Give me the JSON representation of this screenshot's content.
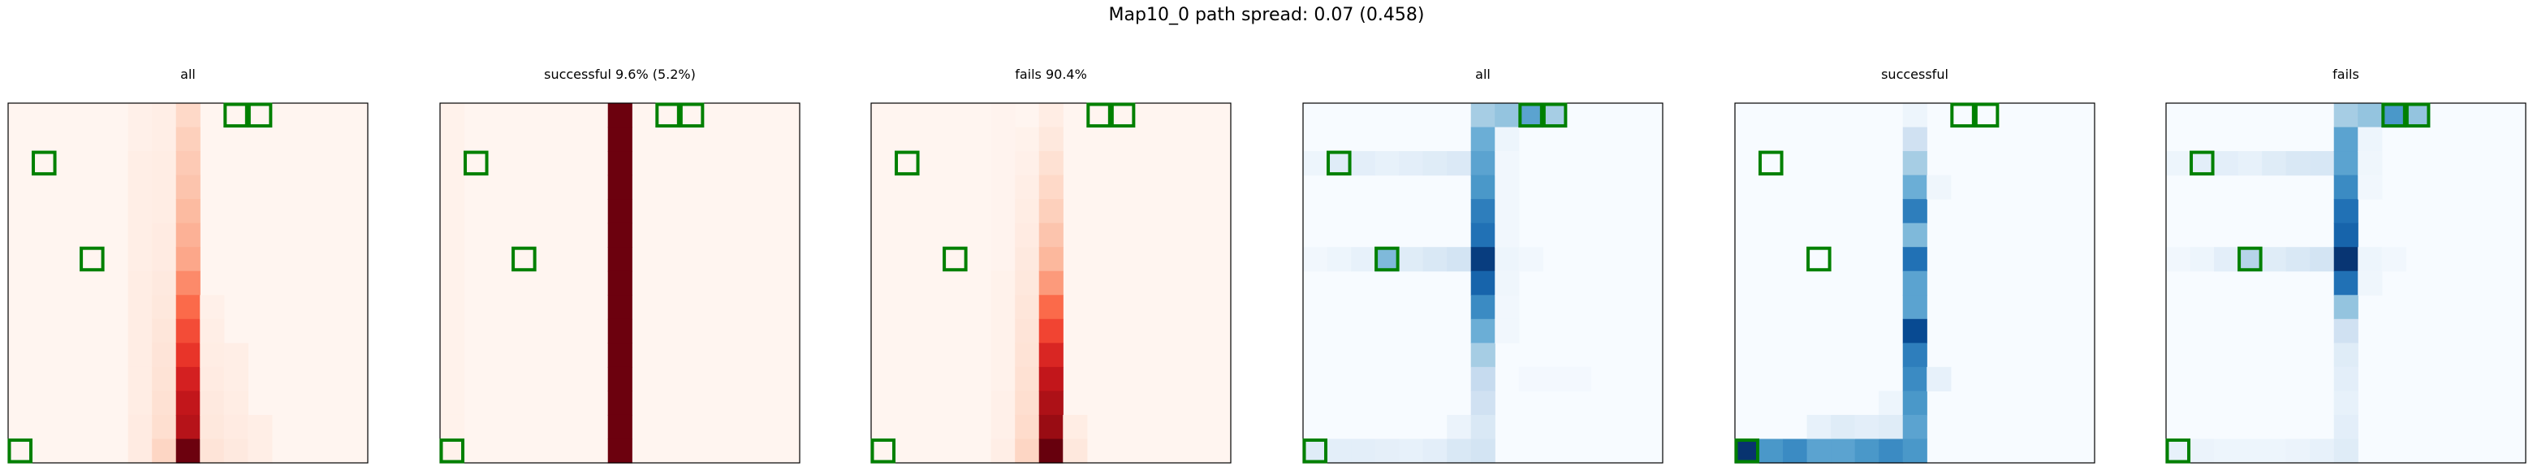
{
  "title": "Map10_0 path spread: 0.07 (0.458)",
  "chart_data": [
    {
      "type": "heatmap",
      "title": "all",
      "colormap": "Reds",
      "grid_size": 15,
      "columns": [
        {
          "col": 5,
          "rows": {
            "0": 0.03,
            "1": 0.03,
            "2": 0.04,
            "3": 0.04,
            "4": 0.04,
            "5": 0.04,
            "6": 0.04,
            "7": 0.05,
            "8": 0.05,
            "9": 0.05,
            "10": 0.05,
            "11": 0.05,
            "12": 0.05,
            "13": 0.06,
            "14": 0.06
          }
        },
        {
          "col": 6,
          "rows": {
            "0": 0.04,
            "1": 0.04,
            "2": 0.05,
            "3": 0.05,
            "4": 0.05,
            "5": 0.06,
            "6": 0.06,
            "7": 0.07,
            "8": 0.08,
            "9": 0.09,
            "10": 0.1,
            "11": 0.11,
            "12": 0.12,
            "13": 0.13,
            "14": 0.16
          }
        },
        {
          "col": 7,
          "rows": {
            "0": 0.15,
            "1": 0.18,
            "2": 0.2,
            "3": 0.22,
            "4": 0.25,
            "5": 0.28,
            "6": 0.31,
            "7": 0.4,
            "8": 0.5,
            "9": 0.58,
            "10": 0.65,
            "11": 0.72,
            "12": 0.78,
            "13": 0.82,
            "14": 0.99
          }
        },
        {
          "col": 8,
          "rows": {
            "8": 0.03,
            "9": 0.04,
            "10": 0.05,
            "11": 0.06,
            "12": 0.07,
            "13": 0.08,
            "14": 0.1
          }
        },
        {
          "col": 9,
          "rows": {
            "10": 0.04,
            "11": 0.04,
            "12": 0.05,
            "13": 0.06,
            "14": 0.07
          }
        },
        {
          "col": 10,
          "rows": {
            "13": 0.04,
            "14": 0.04
          }
        }
      ],
      "markers": [
        [
          9,
          0
        ],
        [
          10,
          0
        ],
        [
          1,
          2
        ],
        [
          3,
          6
        ],
        [
          0,
          14
        ]
      ]
    },
    {
      "type": "heatmap",
      "title": "successful 9.6% (5.2%)",
      "colormap": "Reds",
      "grid_size": 15,
      "columns": [
        {
          "col": 0,
          "rows": {
            "0": 0.02,
            "1": 0.02,
            "2": 0.02,
            "3": 0.02,
            "4": 0.02,
            "5": 0.02,
            "6": 0.02,
            "7": 0.02,
            "8": 0.02,
            "9": 0.02,
            "10": 0.02,
            "11": 0.02,
            "12": 0.02,
            "13": 0.02,
            "14": 0.02
          }
        },
        {
          "col": 7,
          "rows": {
            "0": 0.99,
            "1": 0.99,
            "2": 0.99,
            "3": 0.99,
            "4": 0.99,
            "5": 0.99,
            "6": 0.99,
            "7": 0.99,
            "8": 0.99,
            "9": 0.99,
            "10": 0.99,
            "11": 0.99,
            "12": 0.99,
            "13": 0.99,
            "14": 0.99
          }
        }
      ],
      "markers": [
        [
          9,
          0
        ],
        [
          10,
          0
        ],
        [
          1,
          2
        ],
        [
          3,
          6
        ],
        [
          0,
          14
        ]
      ]
    },
    {
      "type": "heatmap",
      "title": "fails 90.4%",
      "colormap": "Reds",
      "grid_size": 15,
      "columns": [
        {
          "col": 5,
          "rows": {
            "0": 0.01,
            "1": 0.01,
            "2": 0.01,
            "3": 0.01,
            "4": 0.01,
            "5": 0.01,
            "6": 0.01,
            "7": 0.02,
            "8": 0.02,
            "9": 0.02,
            "10": 0.02,
            "11": 0.02,
            "12": 0.03,
            "13": 0.03,
            "14": 0.04
          }
        },
        {
          "col": 6,
          "rows": {
            "1": 0.02,
            "2": 0.03,
            "3": 0.04,
            "4": 0.05,
            "5": 0.06,
            "6": 0.07,
            "7": 0.08,
            "8": 0.09,
            "9": 0.1,
            "10": 0.11,
            "11": 0.12,
            "12": 0.13,
            "13": 0.14,
            "14": 0.16
          }
        },
        {
          "col": 7,
          "rows": {
            "0": 0.05,
            "1": 0.08,
            "2": 0.12,
            "3": 0.15,
            "4": 0.18,
            "5": 0.22,
            "6": 0.26,
            "7": 0.35,
            "8": 0.5,
            "9": 0.6,
            "10": 0.7,
            "11": 0.78,
            "12": 0.85,
            "13": 0.9,
            "14": 1.0
          }
        },
        {
          "col": 8,
          "rows": {
            "13": 0.05,
            "14": 0.08
          }
        }
      ],
      "markers": [
        [
          9,
          0
        ],
        [
          10,
          0
        ],
        [
          1,
          2
        ],
        [
          3,
          6
        ],
        [
          0,
          14
        ]
      ]
    },
    {
      "type": "heatmap",
      "title": "all",
      "colormap": "Blues",
      "grid_size": 15,
      "columns": [
        {
          "col": 0,
          "rows": {
            "2": 0.05,
            "6": 0.03,
            "14": 0.12
          }
        },
        {
          "col": 1,
          "rows": {
            "2": 0.12,
            "6": 0.05,
            "14": 0.1
          }
        },
        {
          "col": 2,
          "rows": {
            "2": 0.1,
            "6": 0.08,
            "14": 0.1
          }
        },
        {
          "col": 3,
          "rows": {
            "2": 0.08,
            "6": 0.45,
            "14": 0.09
          }
        },
        {
          "col": 4,
          "rows": {
            "2": 0.1,
            "6": 0.12,
            "14": 0.08
          }
        },
        {
          "col": 5,
          "rows": {
            "2": 0.12,
            "6": 0.15,
            "14": 0.1
          }
        },
        {
          "col": 6,
          "rows": {
            "2": 0.14,
            "6": 0.18,
            "13": 0.06,
            "14": 0.15
          }
        },
        {
          "col": 7,
          "rows": {
            "0": 0.35,
            "1": 0.5,
            "2": 0.55,
            "3": 0.6,
            "4": 0.7,
            "5": 0.75,
            "6": 0.95,
            "7": 0.8,
            "8": 0.65,
            "9": 0.5,
            "10": 0.35,
            "11": 0.25,
            "12": 0.2,
            "13": 0.15,
            "14": 0.18
          }
        },
        {
          "col": 8,
          "rows": {
            "0": 0.4,
            "1": 0.05,
            "2": 0.03,
            "3": 0.03,
            "4": 0.03,
            "5": 0.03,
            "6": 0.05,
            "7": 0.04,
            "8": 0.03,
            "9": 0.03
          }
        },
        {
          "col": 9,
          "rows": {
            "0": 0.55,
            "6": 0.03,
            "11": 0.02
          }
        },
        {
          "col": 10,
          "rows": {
            "0": 0.35,
            "11": 0.02
          }
        },
        {
          "col": 11,
          "rows": {
            "11": 0.02
          }
        }
      ],
      "markers": [
        [
          9,
          0
        ],
        [
          10,
          0
        ],
        [
          1,
          2
        ],
        [
          3,
          6
        ],
        [
          0,
          14
        ]
      ]
    },
    {
      "type": "heatmap",
      "title": "successful",
      "colormap": "Blues",
      "grid_size": 15,
      "columns": [
        {
          "col": 0,
          "rows": {
            "14": 0.99
          }
        },
        {
          "col": 1,
          "rows": {
            "14": 0.6
          }
        },
        {
          "col": 2,
          "rows": {
            "14": 0.65
          }
        },
        {
          "col": 3,
          "rows": {
            "13": 0.08,
            "14": 0.55
          }
        },
        {
          "col": 4,
          "rows": {
            "13": 0.12,
            "14": 0.55
          }
        },
        {
          "col": 5,
          "rows": {
            "13": 0.1,
            "14": 0.6
          }
        },
        {
          "col": 6,
          "rows": {
            "12": 0.05,
            "13": 0.12,
            "14": 0.65
          }
        },
        {
          "col": 7,
          "rows": {
            "0": 0.05,
            "1": 0.2,
            "2": 0.35,
            "3": 0.5,
            "4": 0.7,
            "5": 0.45,
            "6": 0.75,
            "7": 0.55,
            "8": 0.55,
            "9": 0.9,
            "10": 0.7,
            "11": 0.65,
            "12": 0.6,
            "13": 0.55,
            "14": 0.6
          }
        },
        {
          "col": 8,
          "rows": {
            "3": 0.04,
            "11": 0.08
          }
        }
      ],
      "markers": [
        [
          9,
          0
        ],
        [
          10,
          0
        ],
        [
          1,
          2
        ],
        [
          3,
          6
        ],
        [
          0,
          14
        ]
      ]
    },
    {
      "type": "heatmap",
      "title": "fails",
      "colormap": "Blues",
      "grid_size": 15,
      "columns": [
        {
          "col": 0,
          "rows": {
            "2": 0.05,
            "6": 0.03,
            "14": 0.08
          }
        },
        {
          "col": 1,
          "rows": {
            "2": 0.1,
            "6": 0.05,
            "14": 0.06
          }
        },
        {
          "col": 2,
          "rows": {
            "2": 0.1,
            "6": 0.1,
            "14": 0.05
          }
        },
        {
          "col": 3,
          "rows": {
            "2": 0.08,
            "6": 0.3,
            "14": 0.05
          }
        },
        {
          "col": 4,
          "rows": {
            "2": 0.12,
            "6": 0.12,
            "14": 0.05
          }
        },
        {
          "col": 5,
          "rows": {
            "2": 0.15,
            "6": 0.15,
            "14": 0.06
          }
        },
        {
          "col": 6,
          "rows": {
            "2": 0.16,
            "6": 0.18,
            "14": 0.08
          }
        },
        {
          "col": 7,
          "rows": {
            "0": 0.35,
            "1": 0.55,
            "2": 0.55,
            "3": 0.65,
            "4": 0.75,
            "5": 0.8,
            "6": 0.98,
            "7": 0.75,
            "8": 0.4,
            "9": 0.2,
            "10": 0.12,
            "11": 0.1,
            "12": 0.08,
            "13": 0.1,
            "14": 0.12
          }
        },
        {
          "col": 8,
          "rows": {
            "0": 0.4,
            "1": 0.05,
            "2": 0.04,
            "3": 0.03,
            "6": 0.05,
            "7": 0.04
          }
        },
        {
          "col": 9,
          "rows": {
            "0": 0.6,
            "6": 0.03
          }
        },
        {
          "col": 10,
          "rows": {
            "0": 0.4
          }
        }
      ],
      "markers": [
        [
          9,
          0
        ],
        [
          10,
          0
        ],
        [
          1,
          2
        ],
        [
          3,
          6
        ],
        [
          0,
          14
        ]
      ]
    }
  ]
}
